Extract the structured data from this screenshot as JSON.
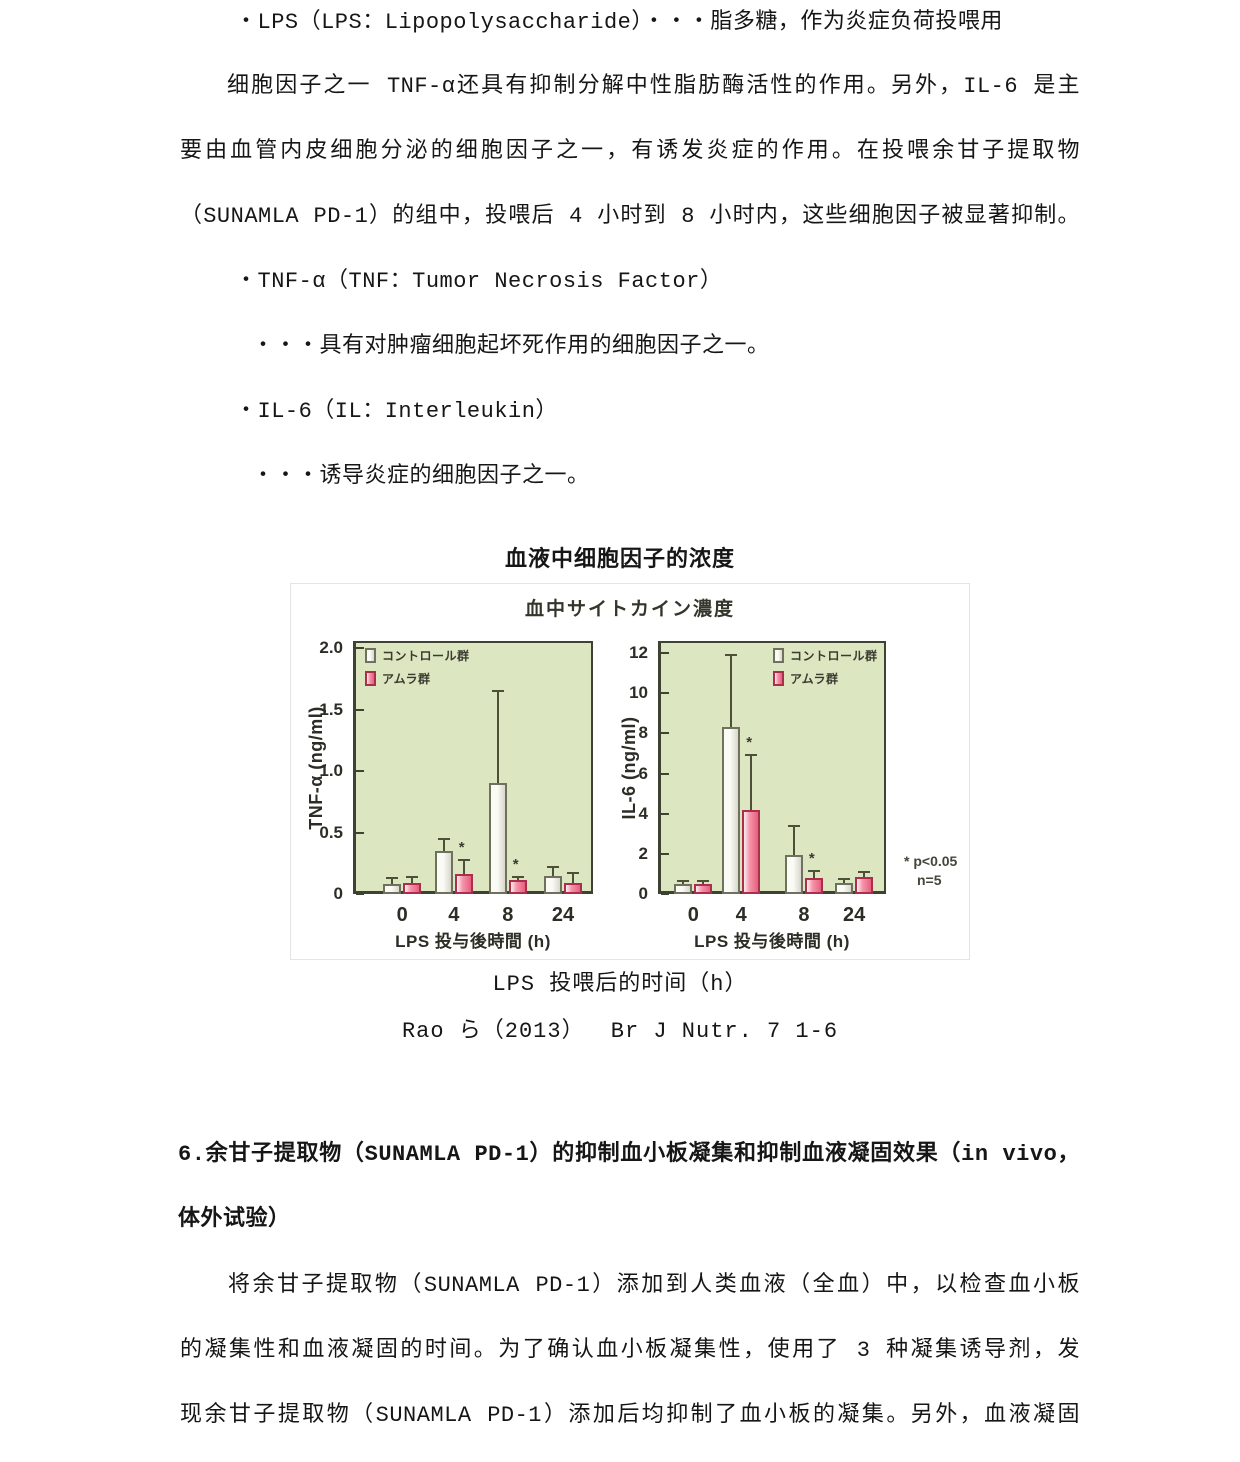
{
  "text_block": {
    "line_lps": "・LPS（LPS：Lipopolysaccharide）・・・脂多糖，作为炎症负荷投喂用",
    "para1_l1": "细胞因子之一 TNF-α还具有抑制分解中性脂肪酶活性的作用。另外，IL-6 是主",
    "para1_l2": "要由血管内皮细胞分泌的细胞因子之一，有诱发炎症的作用。在投喂余甘子提取物",
    "para1_l3": "（SUNAMLA PD-1）的组中，投喂后 4 小时到 8 小时内，这些细胞因子被显著抑制。",
    "bullet_tnf": "・TNF-α（TNF：Tumor Necrosis Factor）",
    "tnf_desc": "・・・具有对肿瘤细胞起坏死作用的细胞因子之一。",
    "bullet_il6": "・IL-6（IL：Interleukin）",
    "il6_desc": "・・・诱导炎症的细胞因子之一。"
  },
  "figure": {
    "caption_top": "血液中细胞因子的浓度",
    "inner_title": "血中サイトカイン濃度",
    "note_star": "* p<0.05",
    "note_n": "n=5",
    "caption_bottom": "LPS 投喂后的时间（h）",
    "reference": "Rao ら（2013）　 Br J Nutr. 7 1-6"
  },
  "section6": {
    "heading_l1": "6.余甘子提取物（SUNAMLA PD-1）的抑制血小板凝集和抑制血液凝固效果（in vivo，",
    "heading_l2": "体外试验）",
    "para_l1": "将余甘子提取物（SUNAMLA PD-1）添加到人类血液（全血）中，以检查血小板",
    "para_l2": "的凝集性和血液凝固的时间。为了确认血小板凝集性，使用了 3 种凝集诱导剂，发",
    "para_l3": "现余甘子提取物（SUNAMLA PD-1）添加后均抑制了血小板的凝集。另外，血液凝固"
  },
  "chart_data": [
    {
      "type": "bar",
      "title": "血中サイトカイン濃度",
      "ylabel": "TNF-α (ng/ml)",
      "xlabel": "LPS 投与後時間 (h)",
      "categories": [
        "0",
        "4",
        "8",
        "24"
      ],
      "yticks": [
        0,
        0.5,
        1.0,
        1.5,
        2.0
      ],
      "ytick_labels": [
        "0",
        "0.5",
        "1.0",
        "1.5",
        "2.0"
      ],
      "ylim": [
        0,
        2.06
      ],
      "grid": false,
      "legend_position": "top-left",
      "series": [
        {
          "name": "コントロール群",
          "values": [
            0.08,
            0.35,
            0.9,
            0.15
          ],
          "errors": [
            0.05,
            0.1,
            0.75,
            0.07
          ],
          "sig": [
            false,
            false,
            false,
            false
          ]
        },
        {
          "name": "アムラ群",
          "values": [
            0.09,
            0.16,
            0.11,
            0.09
          ],
          "errors": [
            0.05,
            0.12,
            0.03,
            0.08
          ],
          "sig": [
            false,
            true,
            true,
            false
          ]
        }
      ]
    },
    {
      "type": "bar",
      "title": "血中サイトカイン濃度",
      "ylabel": "IL-6 (ng/ml)",
      "xlabel": "LPS 投与後時間 (h)",
      "categories": [
        "0",
        "4",
        "8",
        "24"
      ],
      "yticks": [
        0,
        2,
        4,
        6,
        8,
        10,
        12
      ],
      "ytick_labels": [
        "0",
        "2",
        "4",
        "6",
        "8",
        "10",
        "12"
      ],
      "ylim": [
        0,
        12.6
      ],
      "grid": false,
      "legend_position": "top-right",
      "series": [
        {
          "name": "コントロール群",
          "values": [
            0.5,
            8.3,
            1.95,
            0.55
          ],
          "errors": [
            0.15,
            3.6,
            1.45,
            0.2
          ],
          "sig": [
            false,
            false,
            false,
            false
          ]
        },
        {
          "name": "アムラ群",
          "values": [
            0.5,
            4.2,
            0.8,
            0.85
          ],
          "errors": [
            0.15,
            2.7,
            0.35,
            0.25
          ],
          "sig": [
            false,
            true,
            true,
            false
          ]
        }
      ]
    }
  ],
  "colors": {
    "text": "#161616",
    "plot_bg": "#dce6c0",
    "plot_border": "#3e4233",
    "tick": "#3e4233",
    "control_hi": "#fbfbf6",
    "control_lo": "#d7d7cc",
    "control_border": "#70705f",
    "amla_hi": "#fdeef1",
    "amla_mid": "#f495aa",
    "amla_lo": "#e75f7e",
    "amla_border": "#ab2f4c",
    "error_bar": "#4c5038"
  }
}
